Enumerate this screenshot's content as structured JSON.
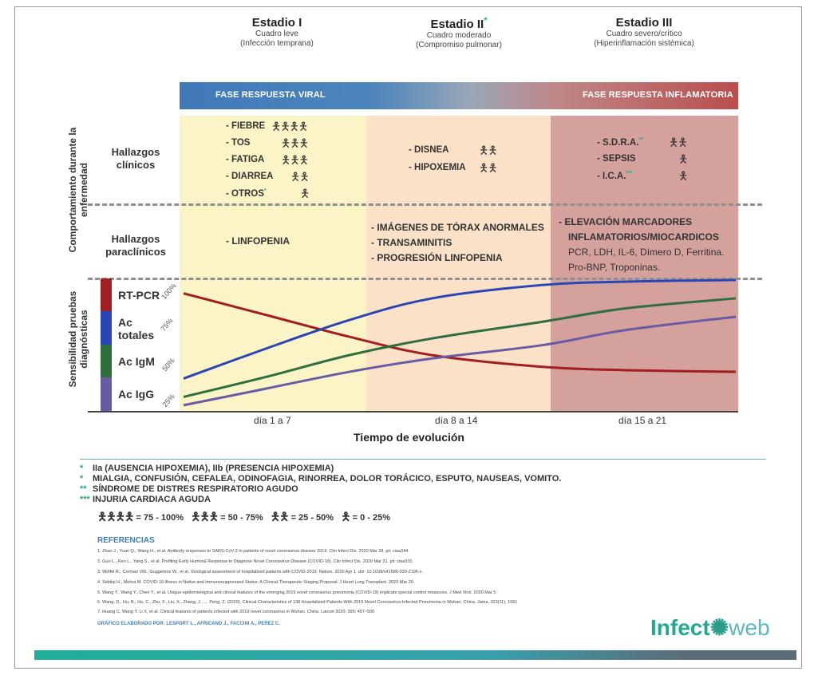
{
  "stages": [
    {
      "title": "Estadio I",
      "mark": "",
      "sub1": "Cuadro leve",
      "sub2": "(Infección temprana)"
    },
    {
      "title": "Estadio II",
      "mark": "*",
      "sub1": "Cuadro moderado",
      "sub2": "(Compromiso pulmonar)"
    },
    {
      "title": "Estadio III",
      "mark": "",
      "sub1": "Cuadro severo/crítico",
      "sub2": "(Hiperinflamación sistémica)"
    }
  ],
  "phases": {
    "viral": "FASE RESPUESTA VIRAL",
    "inflammatory": "FASE RESPUESTA INFLAMATORIA"
  },
  "row_labels": {
    "behavior_line1": "Comportamiento durante la",
    "behavior_line2": "enfermedad",
    "sensitivity_line1": "Sensibilidad pruebas",
    "sensitivity_line2": "diagnósticas",
    "clinical_line1": "Hallazgos",
    "clinical_line2": "clínicos",
    "paraclinical_line1": "Hallazgos",
    "paraclinical_line2": "paraclínicos"
  },
  "clinical": {
    "stage1": [
      {
        "text": "- FIEBRE",
        "mark": "",
        "figs": "🯅🯅🯅🯅"
      },
      {
        "text": "- TOS",
        "mark": "",
        "figs": "🯅🯅🯅"
      },
      {
        "text": "- FATIGA",
        "mark": "",
        "figs": "🯅🯅🯅"
      },
      {
        "text": "- DIARREA",
        "mark": "",
        "figs": "🯅🯅"
      },
      {
        "text": "- OTROS",
        "mark": "*",
        "figs": "🯅"
      }
    ],
    "stage2": [
      {
        "text": "- DISNEA",
        "mark": "",
        "figs": "🯅🯅"
      },
      {
        "text": "- HIPOXEMIA",
        "mark": "",
        "figs": "🯅🯅"
      }
    ],
    "stage3": [
      {
        "text": "- S.D.R.A.",
        "mark": "**",
        "figs": "🯅🯅"
      },
      {
        "text": "- SEPSIS",
        "mark": "",
        "figs": "🯅"
      },
      {
        "text": "- I.C.A.",
        "mark": "***",
        "figs": "🯅"
      }
    ]
  },
  "paraclinical": {
    "stage1": [
      "- LINFOPENIA"
    ],
    "stage2": [
      "- IMÁGENES DE TÓRAX ANORMALES",
      "- TRANSAMINITIS",
      "- PROGRESIÓN LINFOPENIA"
    ],
    "stage3_bold": [
      "- ELEVACIÓN MARCADORES",
      "INFLAMATORIOS/MIOCARDICOS"
    ],
    "stage3_normal": [
      "PCR, LDH, IL-6, Dímero D, Ferritina.",
      "Pro-BNP, Troponinas."
    ]
  },
  "tests": [
    {
      "label": "RT-PCR",
      "color": "#a31f1f"
    },
    {
      "label": "Ac totales",
      "color": "#2a45b5"
    },
    {
      "label": "Ac IgM",
      "color": "#2f6e3f"
    },
    {
      "label": "Ac IgG",
      "color": "#6a5aa5"
    }
  ],
  "chart_data": {
    "type": "line",
    "title": "",
    "xlabel": "Tiempo de evolución",
    "ylabel": "",
    "x_categories": [
      "día 1 a 7",
      "día 8 a 14",
      "día 15 a 21"
    ],
    "x": [
      1,
      4,
      7,
      10,
      14,
      17,
      21
    ],
    "ylim": [
      25,
      100
    ],
    "yticks": [
      "25%",
      "50%",
      "75%",
      "100%"
    ],
    "series": [
      {
        "name": "RT-PCR",
        "color": "#a31f1f",
        "values": [
          93,
          80,
          67,
          56,
          49,
          47,
          46
        ]
      },
      {
        "name": "Ac totales",
        "color": "#2a45b5",
        "values": [
          42,
          60,
          77,
          90,
          98,
          100,
          101
        ]
      },
      {
        "name": "Ac IgM",
        "color": "#2f6e3f",
        "values": [
          31,
          43,
          56,
          66,
          76,
          84,
          90
        ]
      },
      {
        "name": "Ac IgG",
        "color": "#6a5aa5",
        "values": [
          26,
          36,
          46,
          54,
          62,
          71,
          79
        ]
      }
    ]
  },
  "notes": [
    {
      "mark": "*",
      "text": "IIa (AUSENCIA HIPOXEMIA), IIb (PRESENCIA HIPOXEMIA)"
    },
    {
      "mark": "*",
      "text": "MIALGIA, CONFUSIÓN, CEFALEA, ODINOFAGIA, RINORREA, DOLOR TORÁCICO, ESPUTO, NAUSEAS, VOMITO."
    },
    {
      "mark": "**",
      "text": "SÍNDROME DE DISTRES RESPIRATORIO AGUDO"
    },
    {
      "mark": "***",
      "text": "INJURIA CARDIACA AGUDA"
    }
  ],
  "legend": [
    {
      "figs": "🯅🯅🯅🯅",
      "text": "= 75 - 100%"
    },
    {
      "figs": "🯅🯅🯅",
      "text": "= 50 - 75%"
    },
    {
      "figs": "🯅🯅",
      "text": "= 25 - 50%"
    },
    {
      "figs": "🯅",
      "text": "= 0 - 25%"
    }
  ],
  "references_title": "REFERENCIAS",
  "references": [
    "1. Zhao J., Yuan Q., Wang H., et al. Antibody responses to SARS-CoV-2 in patients of novel coronavirus disease 2019. Clin Infect Dis. 2020 Mar 28. pii: ciaa344.",
    "2. Guo L., Ren L., Yang S., et al. Profiling Early Humoral Response to Diagnose Novel Coronavirus Disease (COVID-19). Clin Infect Dis. 2020 Mar 21. pii: ciaa310.",
    "3. Wölfel R., Corman VM., Guggemos W., et al. Virological assessment of hospitalized patients with COVID-2019. Nature. 2020 Apr 1. doi: 10.1038/s41586-020-2196-x.",
    "4. Siddiqi H., Mehra M. COVID-19 Illness in Native and Immunosuppressed States: A Clinical-Therapeutic Staging Proposal. J Heart Lung Transplant. 2020 Mar 20.",
    "5. Wang Y., Wang Y., Chen Y., et al. Unique epidemiological and clinical features of the emerging 2019 novel coronavirus pneumonia (COVID-19) implicate special control measures. J Med Virol. 2020 Mar 5.",
    "6. Wang, D., Hu, B., Hu, C., Zhu, F., Liu, X., Zhang, J., … Peng, Z. (2020). Clinical Characteristics of 138 Hospitalized Patients With 2019 Novel Coronavirus-Infected Pneumonia in Wuhan, China. Jama, 323(11), 1061",
    "7. Huang C, Wang Y, Li X, et al. Clinical features of patients infected with 2019 novel coronavirus in Wuhan, China. Lancet 2020; 395: 497–506"
  ],
  "credit": "GRÁFICO ELABORADO POR: LESPORT L., AFRICANO J., FACCINI A., PEREZ C.",
  "logo": {
    "part1": "Infect",
    "part2": "web"
  }
}
